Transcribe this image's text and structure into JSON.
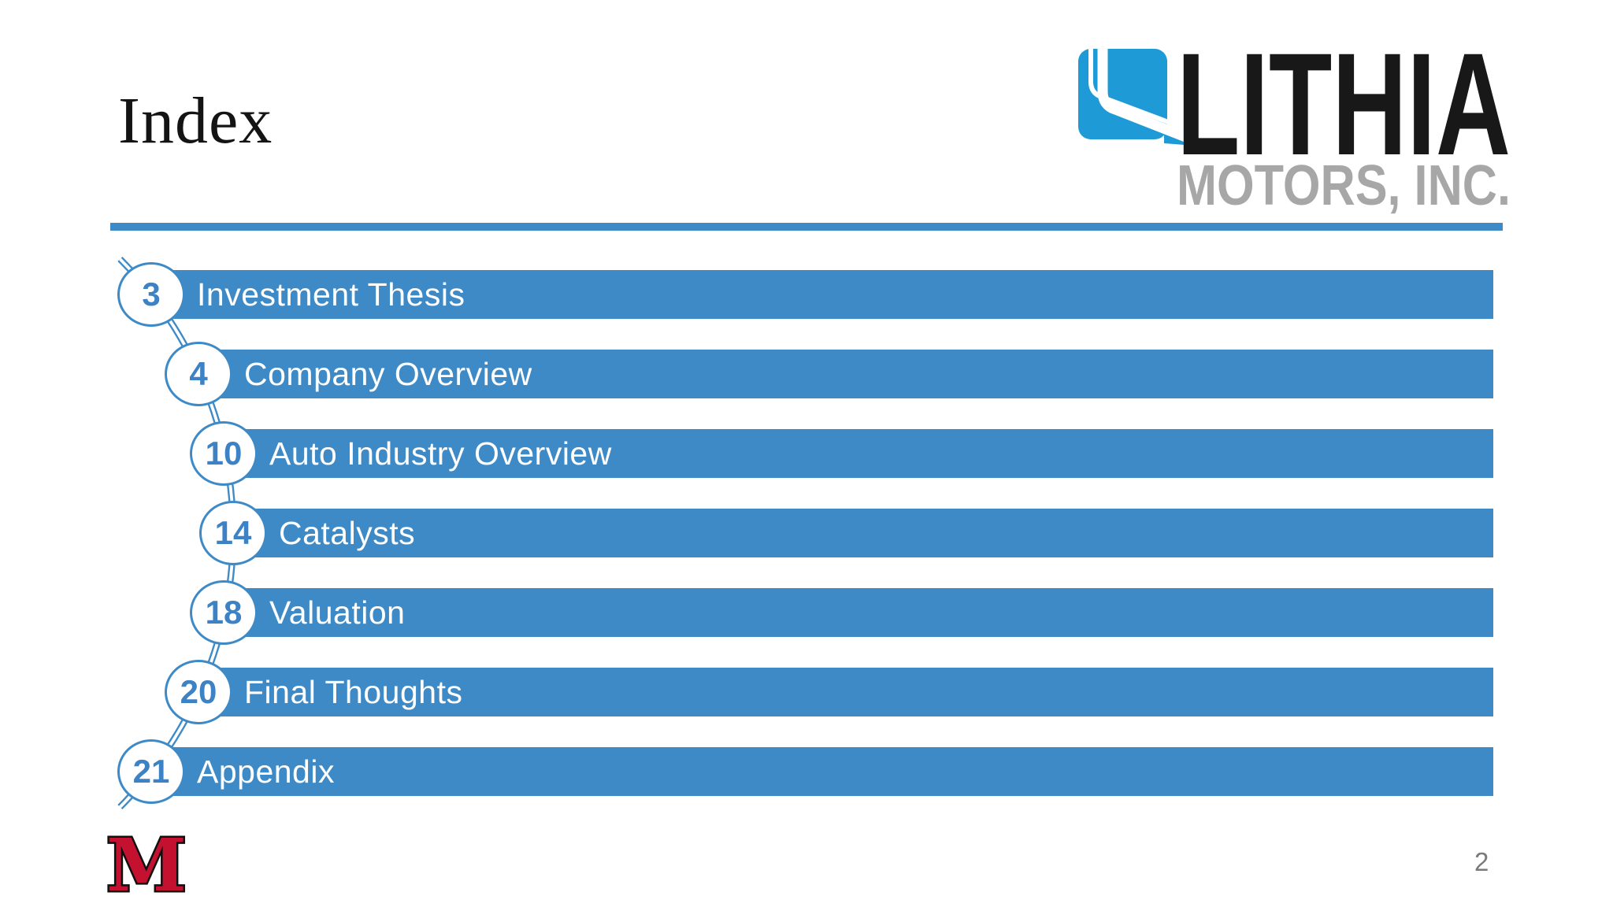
{
  "title": "Index",
  "page_number": "2",
  "logo": {
    "brand": "LITHIA",
    "subbrand": "MOTORS, INC."
  },
  "university_logo": {
    "letter": "M"
  },
  "toc": {
    "items": [
      {
        "page": "3",
        "label": "Investment Thesis"
      },
      {
        "page": "4",
        "label": "Company Overview"
      },
      {
        "page": "10",
        "label": "Auto Industry Overview"
      },
      {
        "page": "14",
        "label": "Catalysts"
      },
      {
        "page": "18",
        "label": "Valuation"
      },
      {
        "page": "20",
        "label": "Final Thoughts"
      },
      {
        "page": "21",
        "label": "Appendix"
      }
    ]
  },
  "colors": {
    "accent_blue": "#3E8AC7",
    "number_blue": "#3C82C4",
    "logo_blue": "#1E9BD7",
    "logo_gray": "#A7A7A7",
    "miami_red": "#C3112F",
    "page_gray": "#7A7A7A"
  }
}
